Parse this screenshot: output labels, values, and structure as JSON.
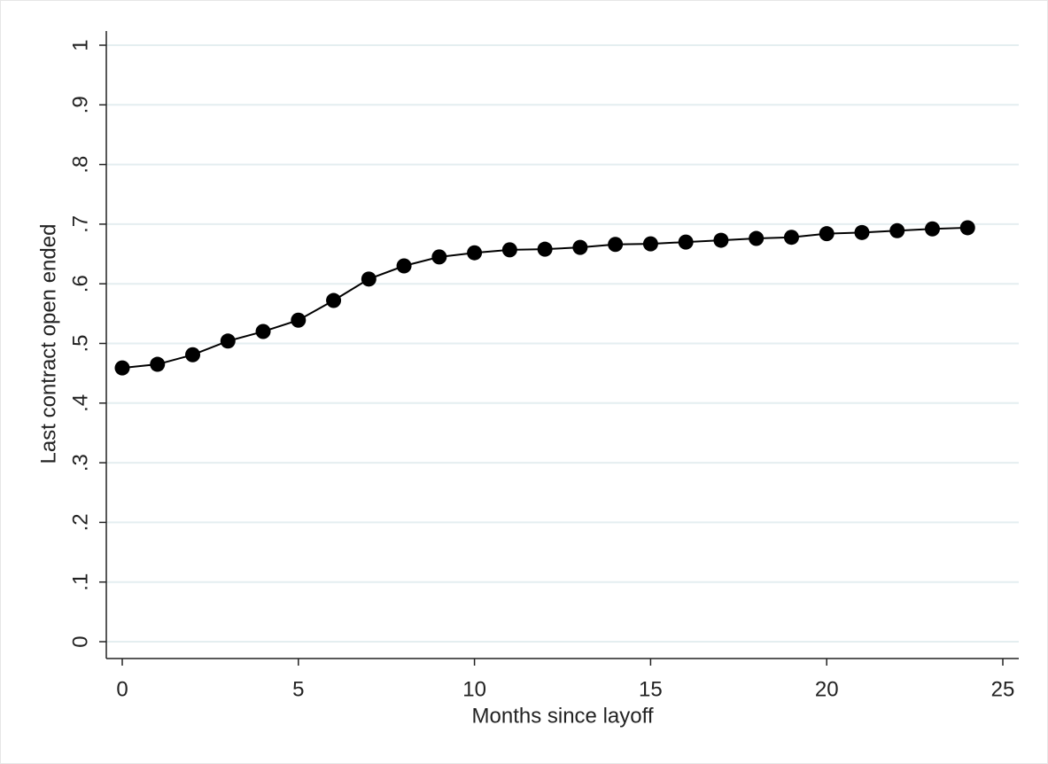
{
  "chart_data": {
    "type": "line",
    "x_label": "Months since layoff",
    "y_label": "Last contract open ended",
    "x": [
      0,
      1,
      2,
      3,
      4,
      5,
      6,
      7,
      8,
      9,
      10,
      11,
      12,
      13,
      14,
      15,
      16,
      17,
      18,
      19,
      20,
      21,
      22,
      23,
      24
    ],
    "series": [
      {
        "color": "#000000",
        "values": [
          0.459,
          0.465,
          0.481,
          0.504,
          0.52,
          0.539,
          0.572,
          0.608,
          0.63,
          0.645,
          0.652,
          0.657,
          0.658,
          0.661,
          0.666,
          0.667,
          0.67,
          0.673,
          0.676,
          0.678,
          0.684,
          0.686,
          0.689,
          0.692,
          0.694
        ]
      }
    ],
    "xlim": [
      0,
      25
    ],
    "xticks": [
      0,
      5,
      10,
      15,
      20,
      25
    ],
    "ylim": [
      0,
      1
    ],
    "yticks": [
      0,
      {
        "value": 0.1,
        "label": ".1"
      },
      {
        "value": 0.2,
        "label": ".2"
      },
      {
        "value": 0.3,
        "label": ".3"
      },
      {
        "value": 0.4,
        "label": ".4"
      },
      {
        "value": 0.5,
        "label": ".5"
      },
      {
        "value": 0.6,
        "label": ".6"
      },
      {
        "value": 0.7,
        "label": ".7"
      },
      {
        "value": 0.8,
        "label": ".8"
      },
      {
        "value": 0.9,
        "label": ".9"
      },
      1
    ],
    "grid": true
  }
}
